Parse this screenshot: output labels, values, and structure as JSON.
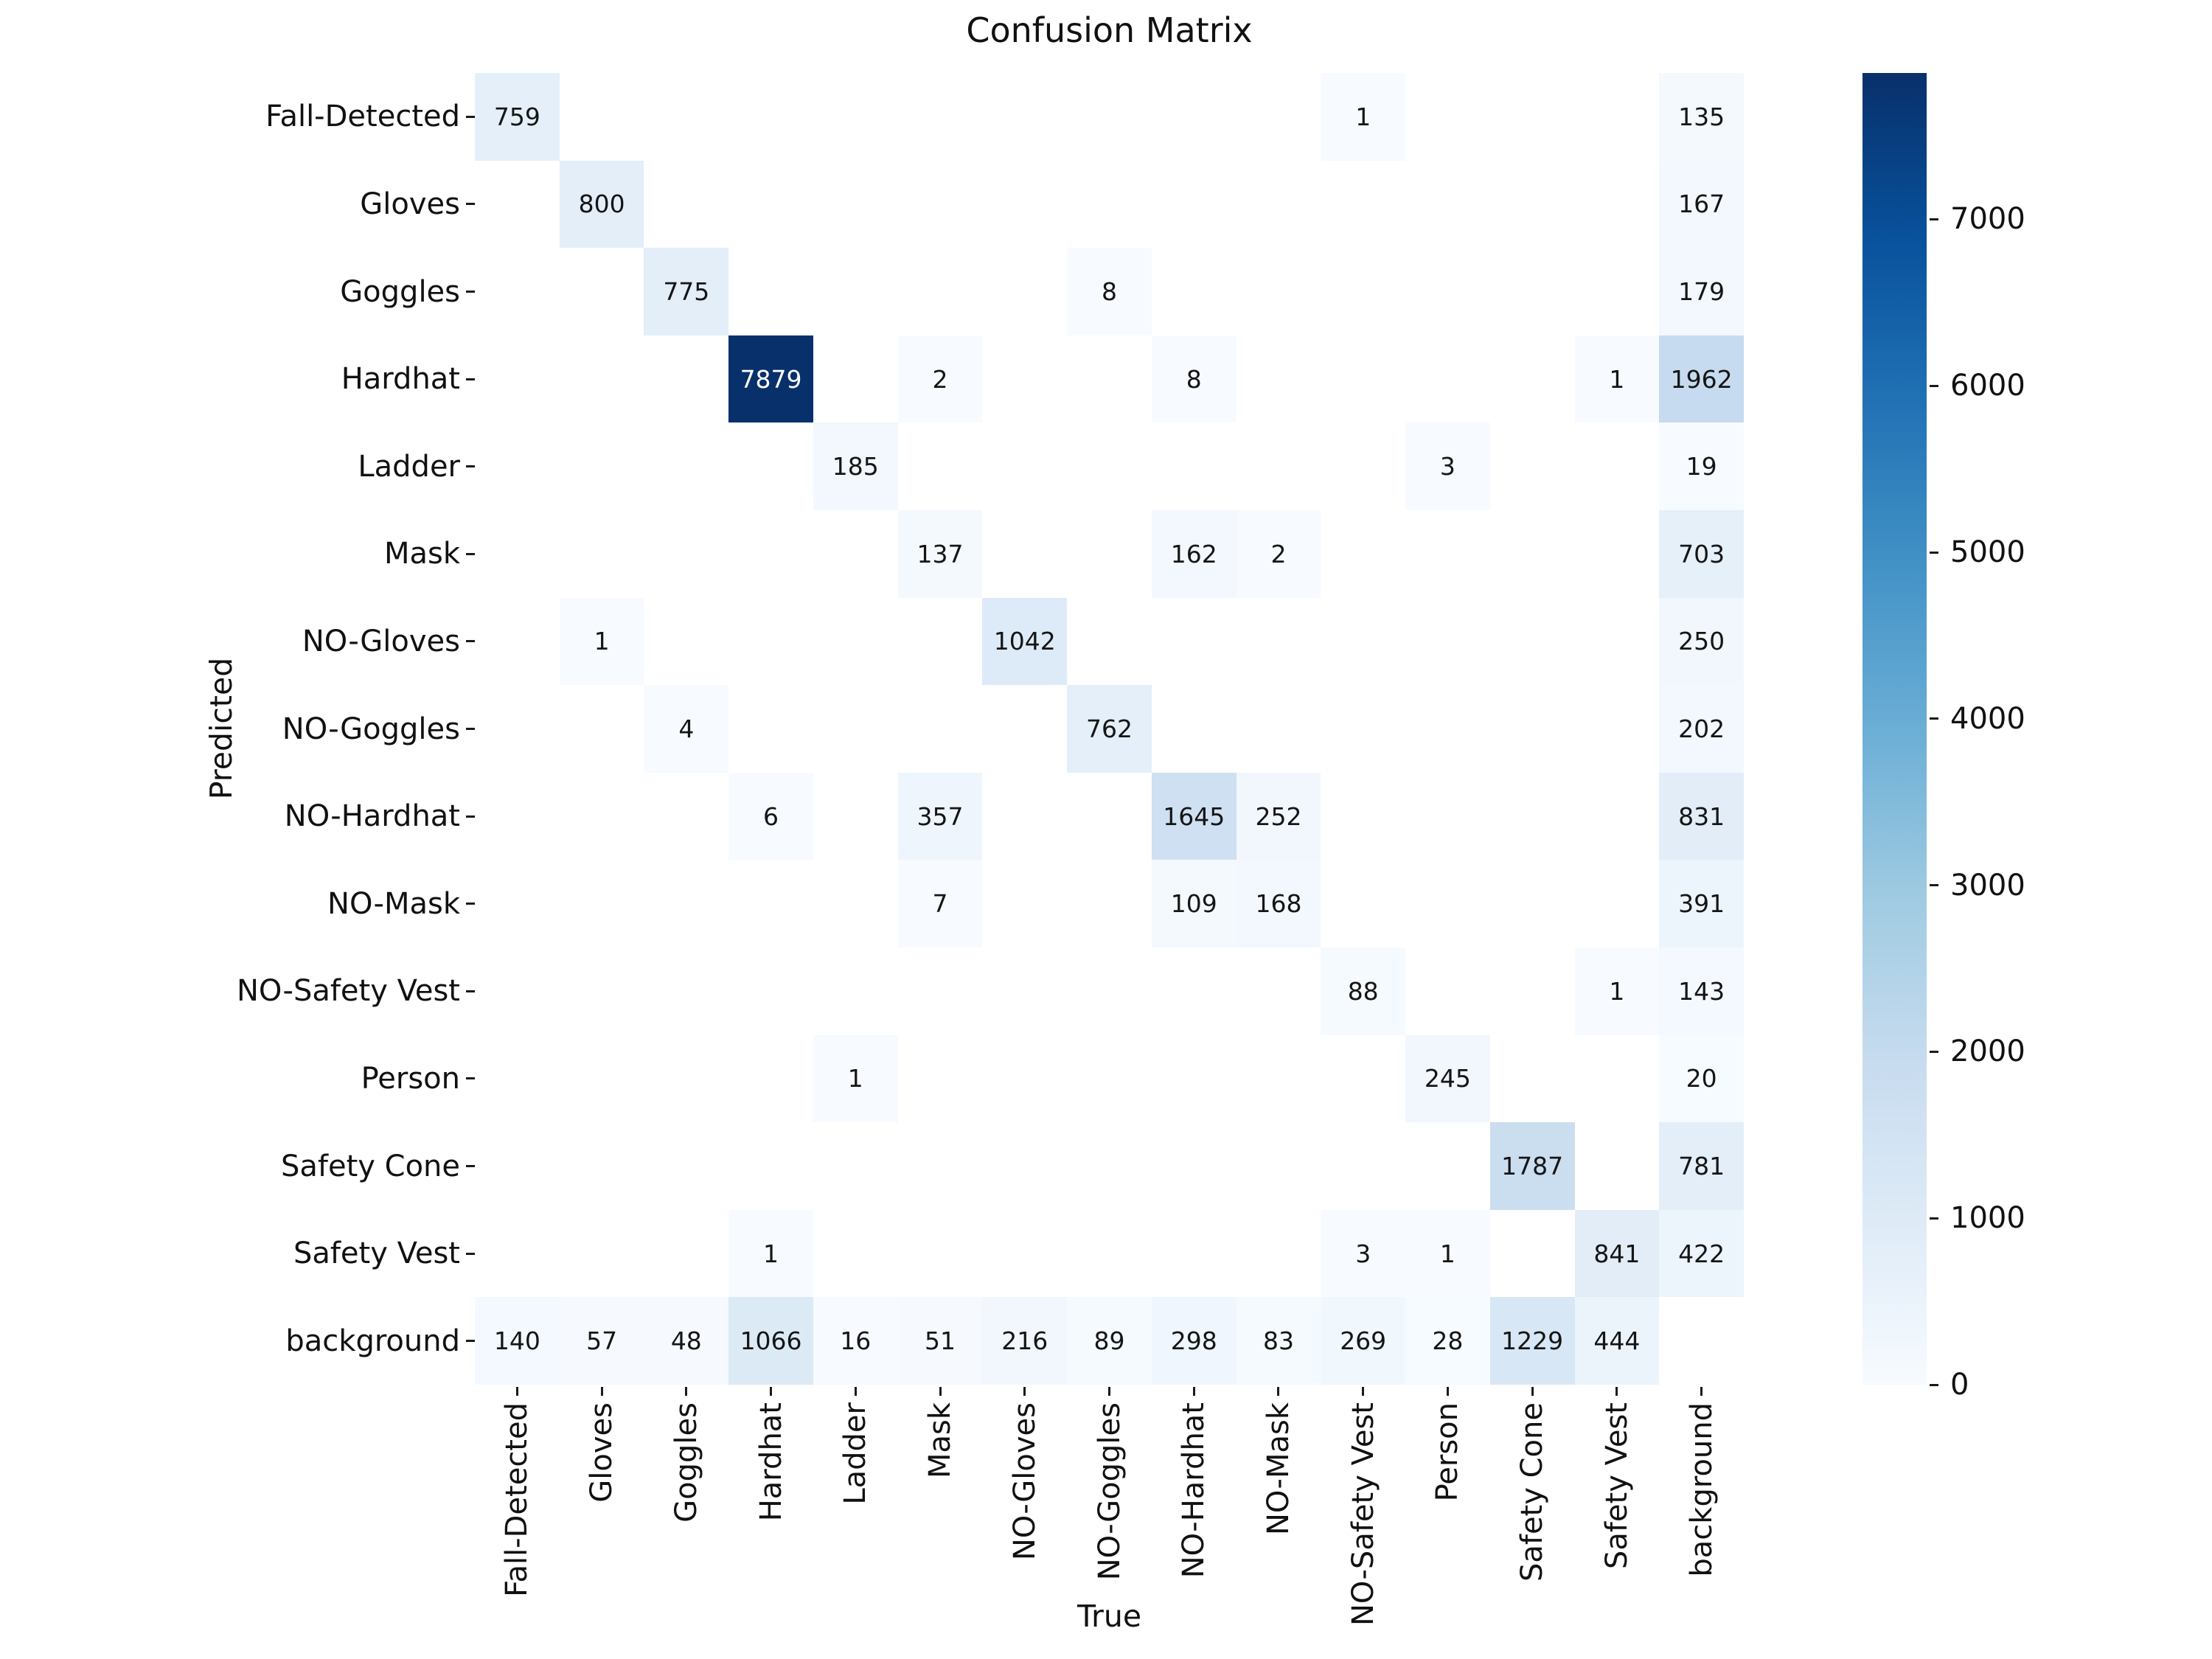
{
  "chart_data": {
    "type": "heatmap",
    "title": "Confusion Matrix",
    "xlabel": "True",
    "ylabel": "Predicted",
    "legend_position": "colorbar-right",
    "grid": false,
    "x_categories": [
      "Fall-Detected",
      "Gloves",
      "Goggles",
      "Hardhat",
      "Ladder",
      "Mask",
      "NO-Gloves",
      "NO-Goggles",
      "NO-Hardhat",
      "NO-Mask",
      "NO-Safety Vest",
      "Person",
      "Safety Cone",
      "Safety Vest",
      "background"
    ],
    "y_categories": [
      "Fall-Detected",
      "Gloves",
      "Goggles",
      "Hardhat",
      "Ladder",
      "Mask",
      "NO-Gloves",
      "NO-Goggles",
      "NO-Hardhat",
      "NO-Mask",
      "NO-Safety Vest",
      "Person",
      "Safety Cone",
      "Safety Vest",
      "background"
    ],
    "matrix": [
      [
        759,
        0,
        0,
        0,
        0,
        0,
        0,
        0,
        0,
        0,
        1,
        0,
        0,
        0,
        135
      ],
      [
        0,
        800,
        0,
        0,
        0,
        0,
        0,
        0,
        0,
        0,
        0,
        0,
        0,
        0,
        167
      ],
      [
        0,
        0,
        775,
        0,
        0,
        0,
        0,
        8,
        0,
        0,
        0,
        0,
        0,
        0,
        179
      ],
      [
        0,
        0,
        0,
        7879,
        0,
        2,
        0,
        0,
        8,
        0,
        0,
        0,
        0,
        1,
        1962
      ],
      [
        0,
        0,
        0,
        0,
        185,
        0,
        0,
        0,
        0,
        0,
        0,
        3,
        0,
        0,
        19
      ],
      [
        0,
        0,
        0,
        0,
        0,
        137,
        0,
        0,
        162,
        2,
        0,
        0,
        0,
        0,
        703
      ],
      [
        0,
        1,
        0,
        0,
        0,
        0,
        1042,
        0,
        0,
        0,
        0,
        0,
        0,
        0,
        250
      ],
      [
        0,
        0,
        4,
        0,
        0,
        0,
        0,
        762,
        0,
        0,
        0,
        0,
        0,
        0,
        202
      ],
      [
        0,
        0,
        0,
        6,
        0,
        357,
        0,
        0,
        1645,
        252,
        0,
        0,
        0,
        0,
        831
      ],
      [
        0,
        0,
        0,
        0,
        0,
        7,
        0,
        0,
        109,
        168,
        0,
        0,
        0,
        0,
        391
      ],
      [
        0,
        0,
        0,
        0,
        0,
        0,
        0,
        0,
        0,
        0,
        88,
        0,
        0,
        1,
        143
      ],
      [
        0,
        0,
        0,
        0,
        1,
        0,
        0,
        0,
        0,
        0,
        0,
        245,
        0,
        0,
        20
      ],
      [
        0,
        0,
        0,
        0,
        0,
        0,
        0,
        0,
        0,
        0,
        0,
        0,
        1787,
        0,
        781
      ],
      [
        0,
        0,
        0,
        1,
        0,
        0,
        0,
        0,
        0,
        0,
        3,
        1,
        0,
        841,
        422
      ],
      [
        140,
        57,
        48,
        1066,
        16,
        51,
        216,
        89,
        298,
        83,
        269,
        28,
        1229,
        444,
        0
      ]
    ],
    "vmin": 0,
    "vmax": 7879,
    "hide_zero_cells": true,
    "colorbar_ticks": [
      0,
      1000,
      2000,
      3000,
      4000,
      5000,
      6000,
      7000
    ],
    "colormap": {
      "name": "Blues",
      "anchors": [
        {
          "pos": 0.0,
          "color": "#f7fbff"
        },
        {
          "pos": 0.125,
          "color": "#deebf7"
        },
        {
          "pos": 0.25,
          "color": "#c6dbef"
        },
        {
          "pos": 0.375,
          "color": "#9ecae1"
        },
        {
          "pos": 0.5,
          "color": "#6baed6"
        },
        {
          "pos": 0.625,
          "color": "#4292c6"
        },
        {
          "pos": 0.75,
          "color": "#2171b5"
        },
        {
          "pos": 0.875,
          "color": "#08519c"
        },
        {
          "pos": 1.0,
          "color": "#08306b"
        }
      ]
    },
    "annotation_color_dark": "#151515",
    "annotation_color_light": "#ffffff",
    "zero_cell_color": "#ffffff",
    "background_color": "#ffffff"
  }
}
